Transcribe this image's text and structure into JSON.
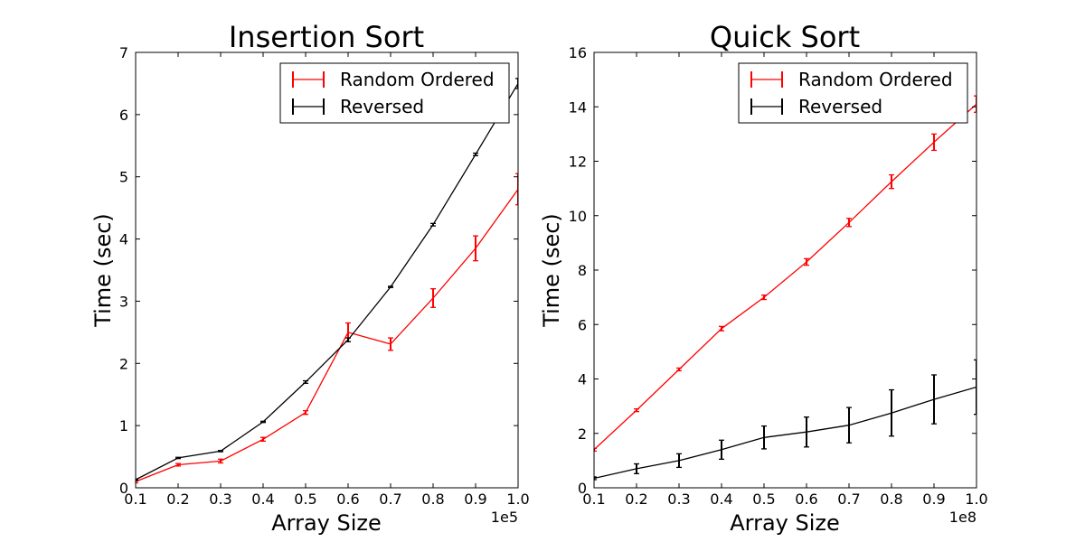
{
  "chart_data": [
    {
      "type": "line",
      "title": "Insertion Sort",
      "xlabel": "Array Size",
      "ylabel": "Time (sec)",
      "x_offset_label": "1e5",
      "x": [
        0.1,
        0.2,
        0.3,
        0.4,
        0.5,
        0.6,
        0.7,
        0.8,
        0.9,
        1.0
      ],
      "xlim": [
        0.1,
        1.0
      ],
      "ylim": [
        0,
        7
      ],
      "xticks": [
        "0.1",
        "0.2",
        "0.3",
        "0.4",
        "0.5",
        "0.6",
        "0.7",
        "0.8",
        "0.9",
        "1.0"
      ],
      "yticks": [
        "0",
        "1",
        "2",
        "3",
        "4",
        "5",
        "6",
        "7"
      ],
      "legend_position": "top-right",
      "series": [
        {
          "name": "Random Ordered",
          "color": "#ff0000",
          "values": [
            0.1,
            0.37,
            0.43,
            0.78,
            1.21,
            2.5,
            2.31,
            3.05,
            3.85,
            4.8
          ],
          "errors": [
            0.02,
            0.02,
            0.03,
            0.03,
            0.03,
            0.15,
            0.1,
            0.15,
            0.2,
            0.25
          ]
        },
        {
          "name": "Reversed",
          "color": "#000000",
          "values": [
            0.13,
            0.48,
            0.59,
            1.06,
            1.7,
            2.38,
            3.23,
            4.23,
            5.36,
            6.5
          ],
          "errors": [
            0.01,
            0.01,
            0.01,
            0.01,
            0.02,
            0.03,
            0.01,
            0.02,
            0.02,
            0.08
          ]
        }
      ]
    },
    {
      "type": "line",
      "title": "Quick Sort",
      "xlabel": "Array Size",
      "ylabel": "Time (sec)",
      "x_offset_label": "1e8",
      "x": [
        0.1,
        0.2,
        0.3,
        0.4,
        0.5,
        0.6,
        0.7,
        0.8,
        0.9,
        1.0
      ],
      "xlim": [
        0.1,
        1.0
      ],
      "ylim": [
        0,
        16
      ],
      "xticks": [
        "0.1",
        "0.2",
        "0.3",
        "0.4",
        "0.5",
        "0.6",
        "0.7",
        "0.8",
        "0.9",
        "1.0"
      ],
      "yticks": [
        "0",
        "2",
        "4",
        "6",
        "8",
        "10",
        "12",
        "14",
        "16"
      ],
      "legend_position": "top-right",
      "series": [
        {
          "name": "Random Ordered",
          "color": "#ff0000",
          "values": [
            1.4,
            2.85,
            4.35,
            5.85,
            7.0,
            8.3,
            9.75,
            11.25,
            12.7,
            14.1
          ],
          "errors": [
            0.05,
            0.05,
            0.05,
            0.08,
            0.08,
            0.12,
            0.15,
            0.25,
            0.3,
            0.3
          ]
        },
        {
          "name": "Reversed",
          "color": "#000000",
          "values": [
            0.35,
            0.7,
            1.0,
            1.4,
            1.85,
            2.05,
            2.3,
            2.75,
            3.25,
            3.7
          ],
          "errors": [
            0.05,
            0.18,
            0.25,
            0.35,
            0.42,
            0.55,
            0.65,
            0.85,
            0.9,
            1.0
          ]
        }
      ]
    }
  ]
}
